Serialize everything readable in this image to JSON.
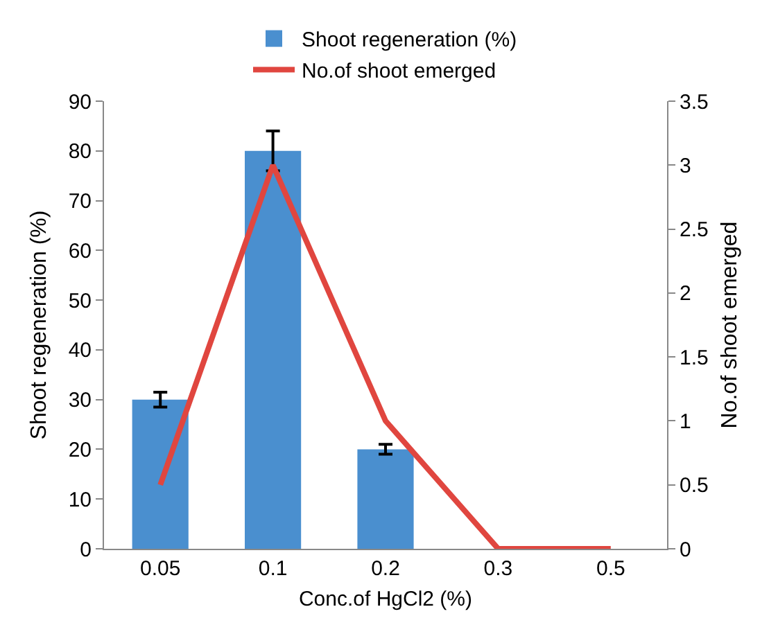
{
  "chart_data": {
    "type": "bar",
    "xlabel": "Conc.of HgCl2 (%)",
    "ylabel": "Shoot regeneration (%)",
    "y2label": "No.of shoot emerged",
    "categories": [
      "0.05",
      "0.1",
      "0.2",
      "0.3",
      "0.5"
    ],
    "series": [
      {
        "name": "Shoot regeneration (%)",
        "color": "#4a8fcf",
        "values": [
          30,
          80,
          20,
          0,
          0
        ],
        "errors": [
          1.5,
          4,
          1,
          null,
          null
        ]
      },
      {
        "name": "No.of shoot emerged",
        "type": "line",
        "axis": "y2",
        "color": "#e0463f",
        "values": [
          0.5,
          3,
          1,
          0,
          0
        ]
      }
    ],
    "ylim": [
      0,
      90
    ],
    "yticks": [
      0,
      10,
      20,
      30,
      40,
      50,
      60,
      70,
      80,
      90
    ],
    "y2lim": [
      0,
      3.5
    ],
    "y2ticks": [
      0,
      0.5,
      1,
      1.5,
      2,
      2.5,
      3,
      3.5
    ],
    "legend": "top",
    "grid": false,
    "marker": "none",
    "line_style": "solid"
  }
}
